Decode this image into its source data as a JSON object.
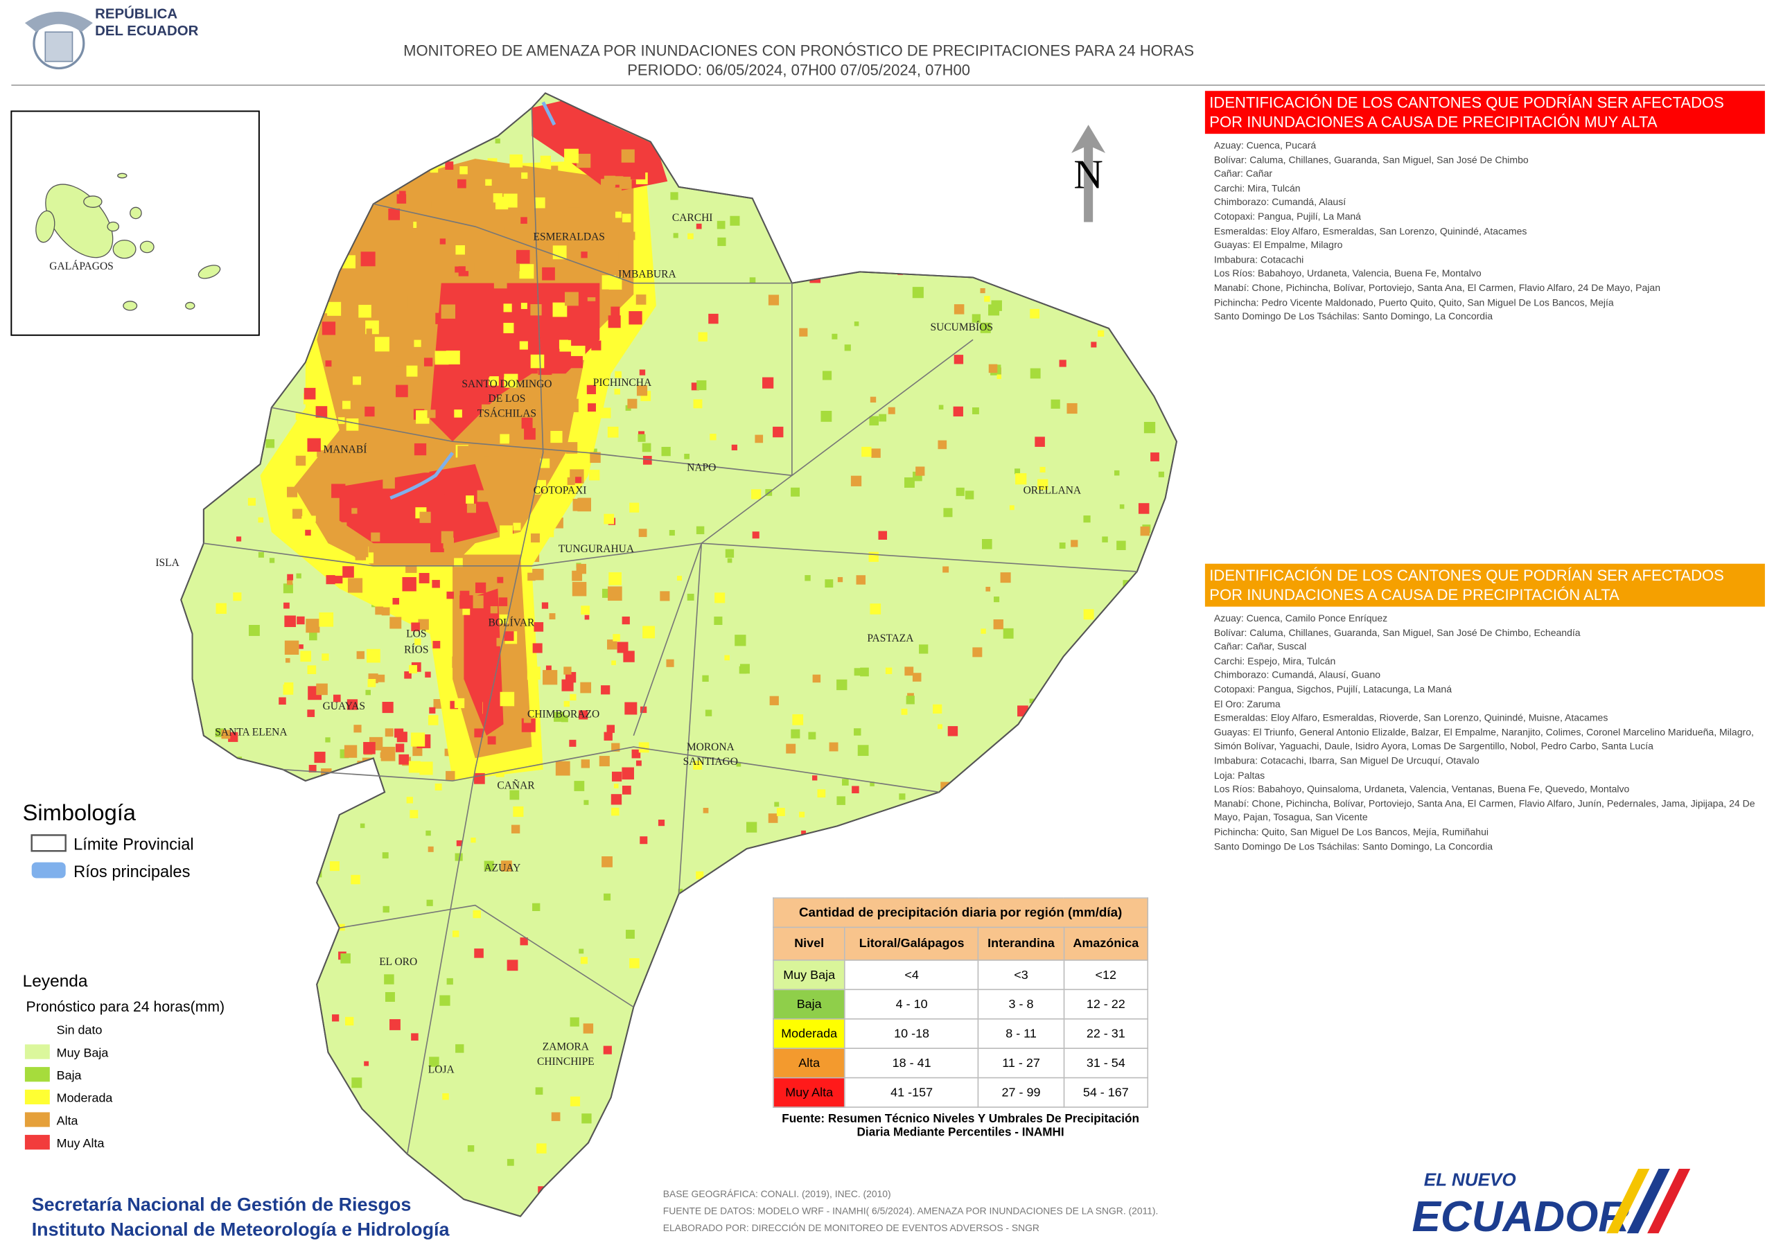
{
  "header": {
    "logo_text": [
      "REPÚBLICA",
      "DEL ECUADOR"
    ],
    "title": [
      "MONITOREO DE AMENAZA POR INUNDACIONES  CON PRONÓSTICO DE  PRECIPITACIONES PARA 24 HORAS",
      "PERIODO: 06/05/2024, 07H00 07/05/2024, 07H00"
    ]
  },
  "inset": {
    "label": "GALÁPAGOS"
  },
  "north": "N",
  "map": {
    "labels": [
      "CARCHI",
      "ESMERALDAS",
      "IMBABURA",
      "SUCUMBÍOS",
      "PICHINCHA",
      "SANTO DOMINGO",
      "DE LOS",
      "TSÁCHILAS",
      "MANABÍ",
      "NAPO",
      "ORELLANA",
      "COTOPAXI",
      "ISLA",
      "TUNGURAHUA",
      "BOLÍVAR",
      "LOS",
      "RÍOS",
      "PASTAZA",
      "GUAYAS",
      "CHIMBORAZO",
      "SANTA ELENA",
      "MORONA",
      "SANTIAGO",
      "CAÑAR",
      "AZUAY",
      "EL ORO",
      "ZAMORA",
      "CHINCHIPE",
      "LOJA"
    ]
  },
  "panels": [
    {
      "title": "IDENTIFICACIÓN DE LOS CANTONES QUE PODRÍAN SER AFECTADOS POR INUNDACIONES  A CAUSA DE PRECIPITACIÓN MUY ALTA",
      "color": "#ff0000",
      "items": [
        "Azuay: Cuenca, Pucará",
        "Bolívar: Caluma, Chillanes, Guaranda, San Miguel, San José De Chimbo",
        "Cañar: Cañar",
        "Carchi: Mira, Tulcán",
        "Chimborazo: Cumandá, Alausí",
        "Cotopaxi: Pangua, Pujilí, La Maná",
        "Esmeraldas: Eloy Alfaro, Esmeraldas, San Lorenzo, Quinindé, Atacames",
        "Guayas: El Empalme, Milagro",
        "Imbabura: Cotacachi",
        "Los Ríos: Babahoyo, Urdaneta, Valencia, Buena Fe, Montalvo",
        "Manabí: Chone, Pichincha, Bolívar, Portoviejo, Santa Ana, El Carmen, Flavio Alfaro, 24 De Mayo, Pajan",
        "Pichincha: Pedro Vicente Maldonado, Puerto Quito, Quito, San Miguel De Los Bancos, Mejía",
        "Santo Domingo De Los Tsáchilas: Santo Domingo, La Concordia"
      ]
    },
    {
      "title": "IDENTIFICACIÓN DE LOS CANTONES QUE  PODRÍAN SER AFECTADOS POR INUNDACIONES  A CAUSA DE PRECIPITACIÓN  ALTA",
      "color": "#f5a000",
      "items": [
        "Azuay: Cuenca, Camilo Ponce Enríquez",
        "Bolívar: Caluma, Chillanes, Guaranda, San Miguel, San José De Chimbo, Echeandía",
        "Cañar: Cañar, Suscal",
        "Carchi: Espejo, Mira, Tulcán",
        "Chimborazo: Cumandá, Alausí, Guano",
        "Cotopaxi: Pangua, Sigchos, Pujilí, Latacunga, La Maná",
        "El Oro: Zaruma",
        "Esmeraldas: Eloy Alfaro, Esmeraldas, Rioverde, San Lorenzo, Quinindé, Muisne, Atacames",
        "Guayas: El Triunfo, General Antonio Elizalde, Balzar, El Empalme, Naranjito, Colimes, Coronel Marcelino Maridueña, Milagro, Simón Bolívar, Yaguachi, Daule, Isidro Ayora, Lomas De Sargentillo, Nobol, Pedro Carbo, Santa Lucía",
        "Imbabura: Cotacachi, Ibarra, San Miguel De Urcuquí, Otavalo",
        "Loja: Paltas",
        "Los Ríos: Babahoyo, Quinsaloma, Urdaneta, Valencia, Ventanas, Buena Fe, Quevedo, Montalvo",
        "Manabí: Chone, Pichincha, Bolívar, Portoviejo, Santa Ana, El Carmen, Flavio Alfaro, Junín, Pedernales, Jama, Jipijapa, 24 De Mayo, Pajan, Tosagua, San Vicente",
        "Pichincha: Quito, San Miguel De Los Bancos, Mejía, Rumiñahui",
        "Santo Domingo De Los Tsáchilas: Santo Domingo, La Concordia"
      ]
    }
  ],
  "symbology": {
    "title": "Simbología",
    "items": [
      "Límite Provincial",
      "Ríos principales"
    ]
  },
  "legend": {
    "title": "Leyenda",
    "subtitle": "Pronóstico para 24 horas(mm)",
    "items": [
      {
        "label": "Sin dato"
      },
      {
        "label": "Muy Baja",
        "color": "#dbf79c"
      },
      {
        "label": "Baja",
        "color": "#a6dc3c"
      },
      {
        "label": "Moderada",
        "color": "#ffff33"
      },
      {
        "label": "Alta",
        "color": "#e5a03a"
      },
      {
        "label": "Muy Alta",
        "color": "#f23c3c"
      }
    ]
  },
  "table": {
    "title": "Cantidad de precipitación diaria por región (mm/día)",
    "header": [
      "Nivel",
      "Litoral/Galápagos",
      "Interandina",
      "Amazónica"
    ],
    "row_colors": [
      "#d9f59a",
      "#8fcf4a",
      "#ffff00",
      "#f39a2e",
      "#ff1a1a"
    ],
    "rows": [
      [
        "Muy Baja",
        "<4",
        "<3",
        "<12"
      ],
      [
        "Baja",
        "4 - 10",
        "3 - 8",
        "12 - 22"
      ],
      [
        "Moderada",
        "10 -18",
        "8 - 11",
        "22 - 31"
      ],
      [
        "Alta",
        "18 - 41",
        "11 - 27",
        "31 - 54"
      ],
      [
        "Muy Alta",
        "41 -157",
        "27 - 99",
        "54 - 167"
      ]
    ],
    "source": "Fuente: Resumen Técnico Niveles Y Umbrales De Precipitación Diaria Mediante Percentiles - INAMHI"
  },
  "footer": {
    "institutions": [
      "Secretaría Nacional de Gestión de Riesgos",
      "Instituto Nacional de Meteorología e Hidrología"
    ],
    "notes": [
      "BASE GEOGRÁFICA: CONALI. (2019), INEC. (2010)",
      "FUENTE DE DATOS: MODELO WRF - INAMHI( 6/5/2024).  AMENAZA POR INUNDACIONES DE LA SNGR. (2011).",
      "ELABORADO POR: DIRECCIÓN DE MONITOREO DE EVENTOS ADVERSOS - SNGR"
    ],
    "brand": [
      "EL NUEVO",
      "ECUADOR"
    ]
  }
}
